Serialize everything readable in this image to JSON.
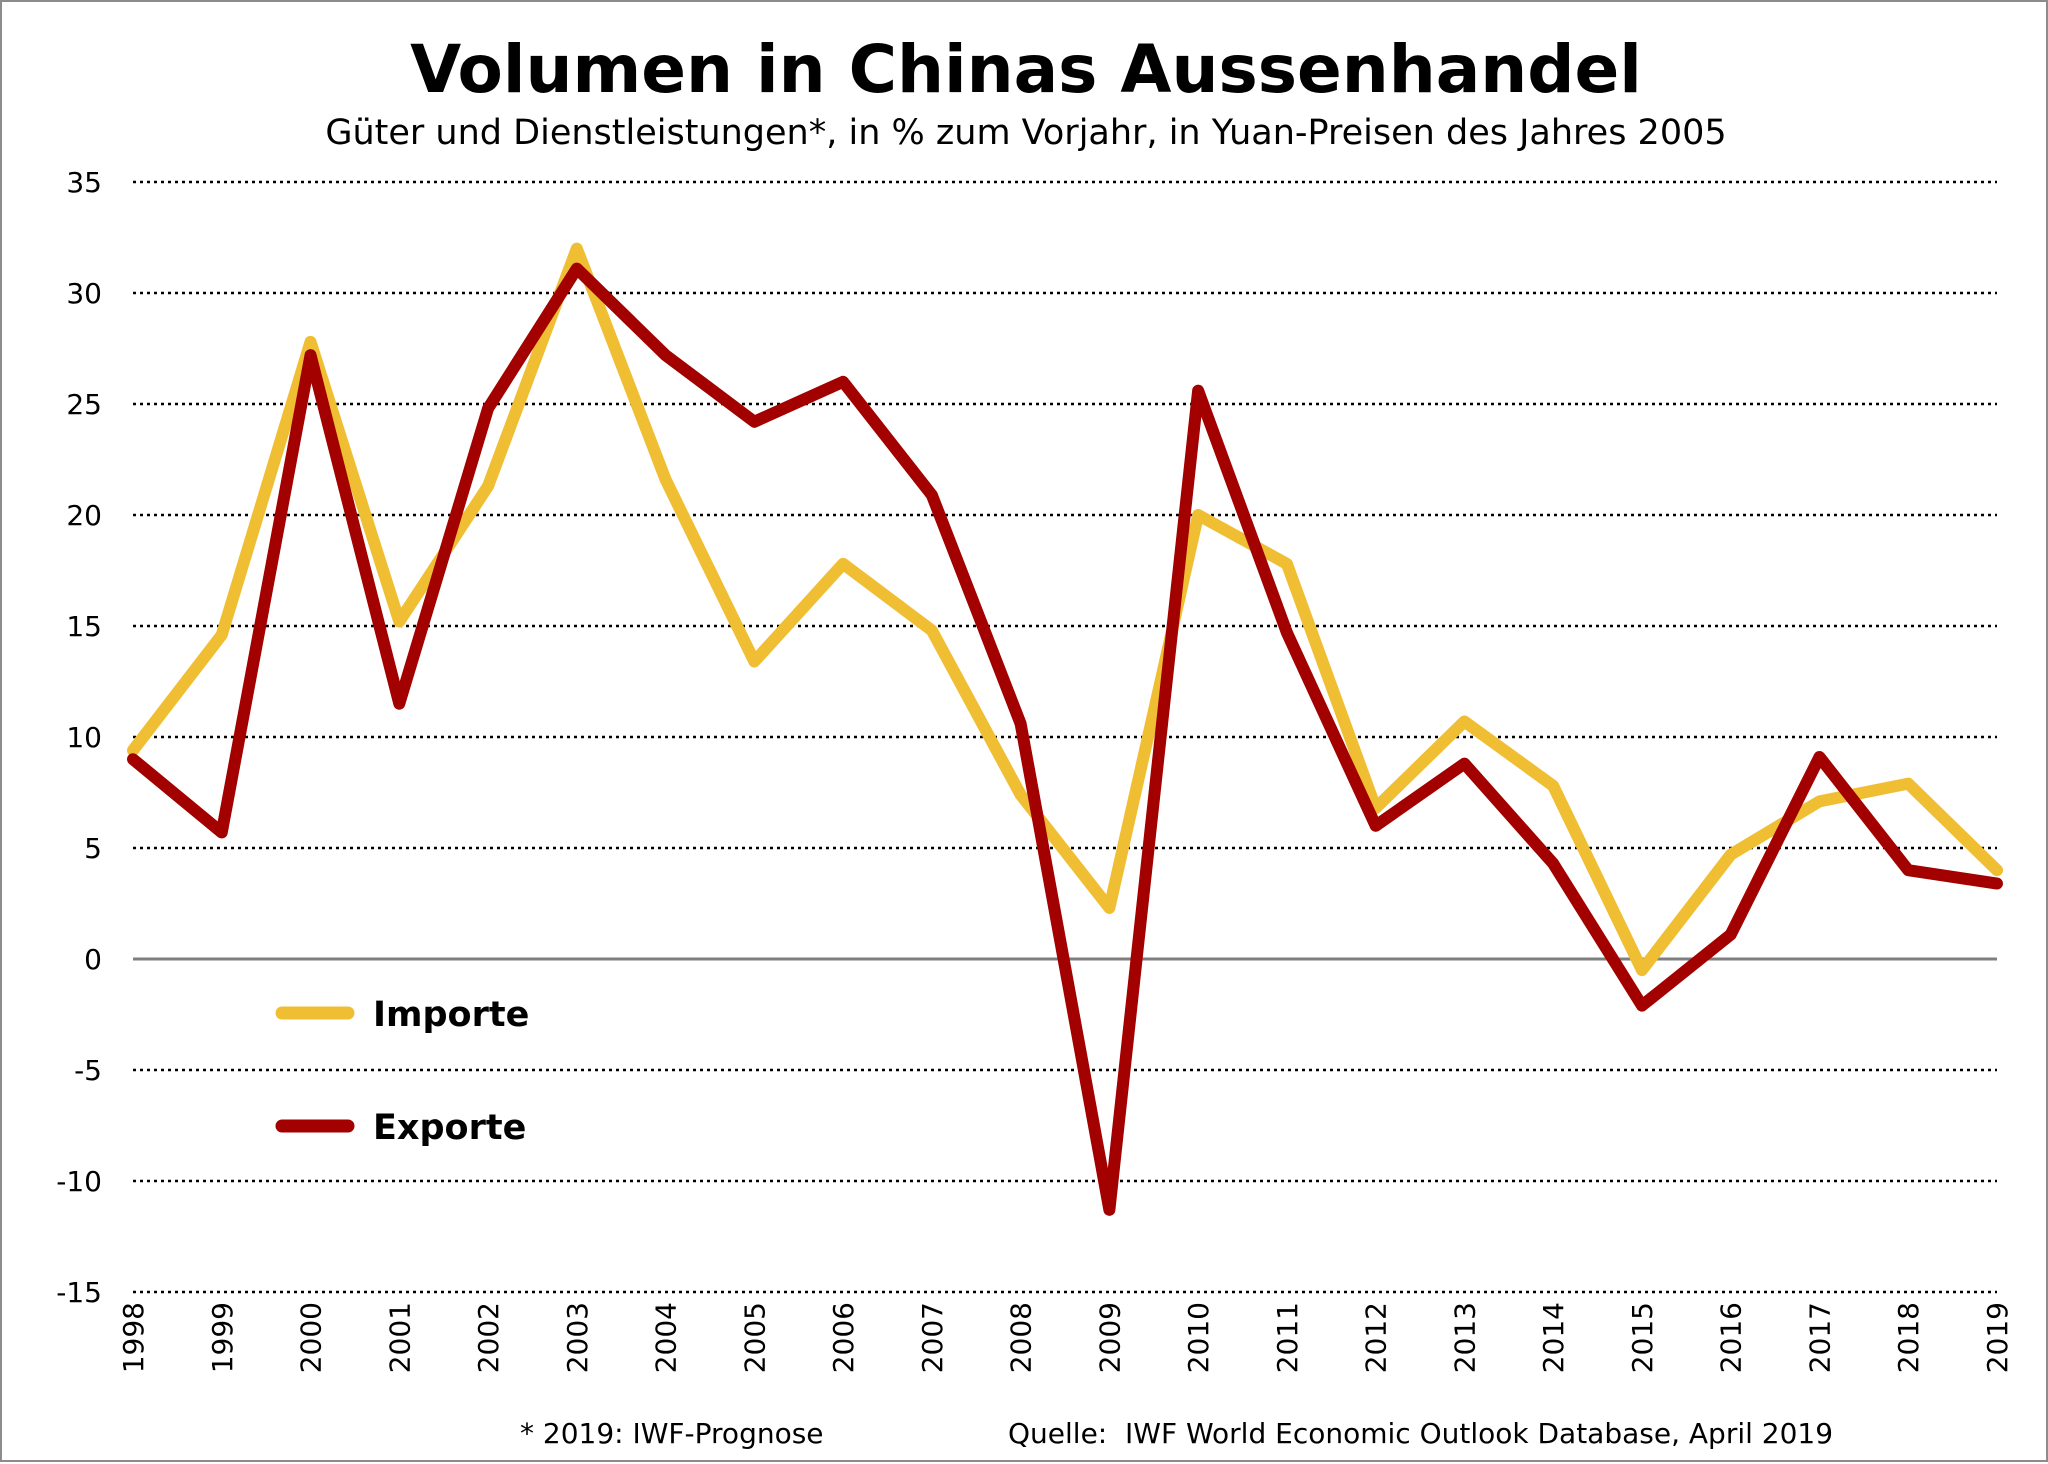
{
  "chart_data": {
    "type": "line",
    "title": "Volumen in Chinas Aussenhandel",
    "subtitle": "Güter und Dienstleistungen*, in % zum Vorjahr, in Yuan-Preisen des Jahres 2005",
    "x": [
      "1998",
      "1999",
      "2000",
      "2001",
      "2002",
      "2003",
      "2004",
      "2005",
      "2006",
      "2007",
      "2008",
      "2009",
      "2010",
      "2011",
      "2012",
      "2013",
      "2014",
      "2015",
      "2016",
      "2017",
      "2018",
      "2019"
    ],
    "ylim": [
      -15,
      35
    ],
    "yticks": [
      35,
      30,
      25,
      20,
      15,
      10,
      5,
      0,
      -5,
      -10,
      -15
    ],
    "grid": true,
    "legend_position": "lower-left",
    "series": [
      {
        "name": "Importe",
        "color": "#f0be32",
        "values": [
          9.4,
          14.6,
          27.8,
          15.2,
          21.3,
          32.0,
          21.6,
          13.4,
          17.8,
          14.8,
          7.4,
          2.3,
          20.0,
          17.8,
          6.8,
          10.7,
          7.8,
          -0.5,
          4.7,
          7.1,
          7.9,
          4.0
        ]
      },
      {
        "name": "Exporte",
        "color": "#a30000",
        "values": [
          9.0,
          5.7,
          27.2,
          11.5,
          24.8,
          31.1,
          27.2,
          24.2,
          26.0,
          20.9,
          10.6,
          -11.3,
          25.6,
          14.7,
          6.0,
          8.8,
          4.3,
          -2.1,
          1.1,
          9.1,
          4.0,
          3.4
        ]
      }
    ],
    "footnote": "* 2019: IWF-Prognose",
    "source": "Quelle:  IWF World Economic Outlook Database, April 2019"
  }
}
